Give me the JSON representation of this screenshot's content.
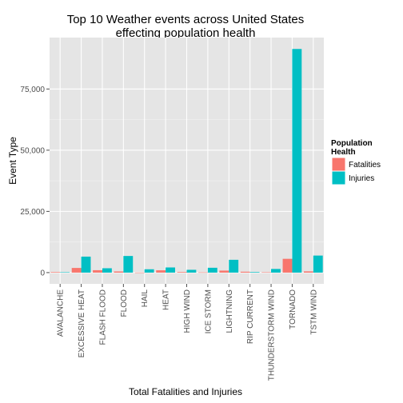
{
  "chart_data": {
    "type": "bar",
    "title_lines": [
      "Top 10 Weather events across United States",
      "effecting population health"
    ],
    "xlabel": "Total Fatalities and Injuries",
    "ylabel": "Event Type",
    "categories": [
      "AVALANCHE",
      "EXCESSIVE HEAT",
      "FLASH FLOOD",
      "FLOOD",
      "HAIL",
      "HEAT",
      "HIGH WIND",
      "ICE STORM",
      "LIGHTNING",
      "RIP CURRENT",
      "THUNDERSTORM WIND",
      "TORNADO",
      "TSTM WIND"
    ],
    "series": [
      {
        "name": "Fatalities",
        "color": "#F8766D",
        "values": [
          224,
          1903,
          978,
          470,
          15,
          937,
          248,
          89,
          816,
          368,
          133,
          5633,
          504
        ]
      },
      {
        "name": "Injuries",
        "color": "#00BFC4",
        "values": [
          170,
          6525,
          1777,
          6789,
          1361,
          2100,
          1137,
          1975,
          5230,
          232,
          1488,
          91346,
          6957
        ]
      }
    ],
    "y_ticks": [
      0,
      25000,
      50000,
      75000
    ],
    "y_tick_labels": [
      "0",
      "25,000",
      "50,000",
      "75,000"
    ],
    "ylim": [
      -4600,
      96000
    ],
    "legend": {
      "title_lines": [
        "Population",
        "Health"
      ],
      "position": "right"
    },
    "grid": true,
    "panel_background": "#E5E5E5",
    "grid_color": "#FFFFFF"
  }
}
